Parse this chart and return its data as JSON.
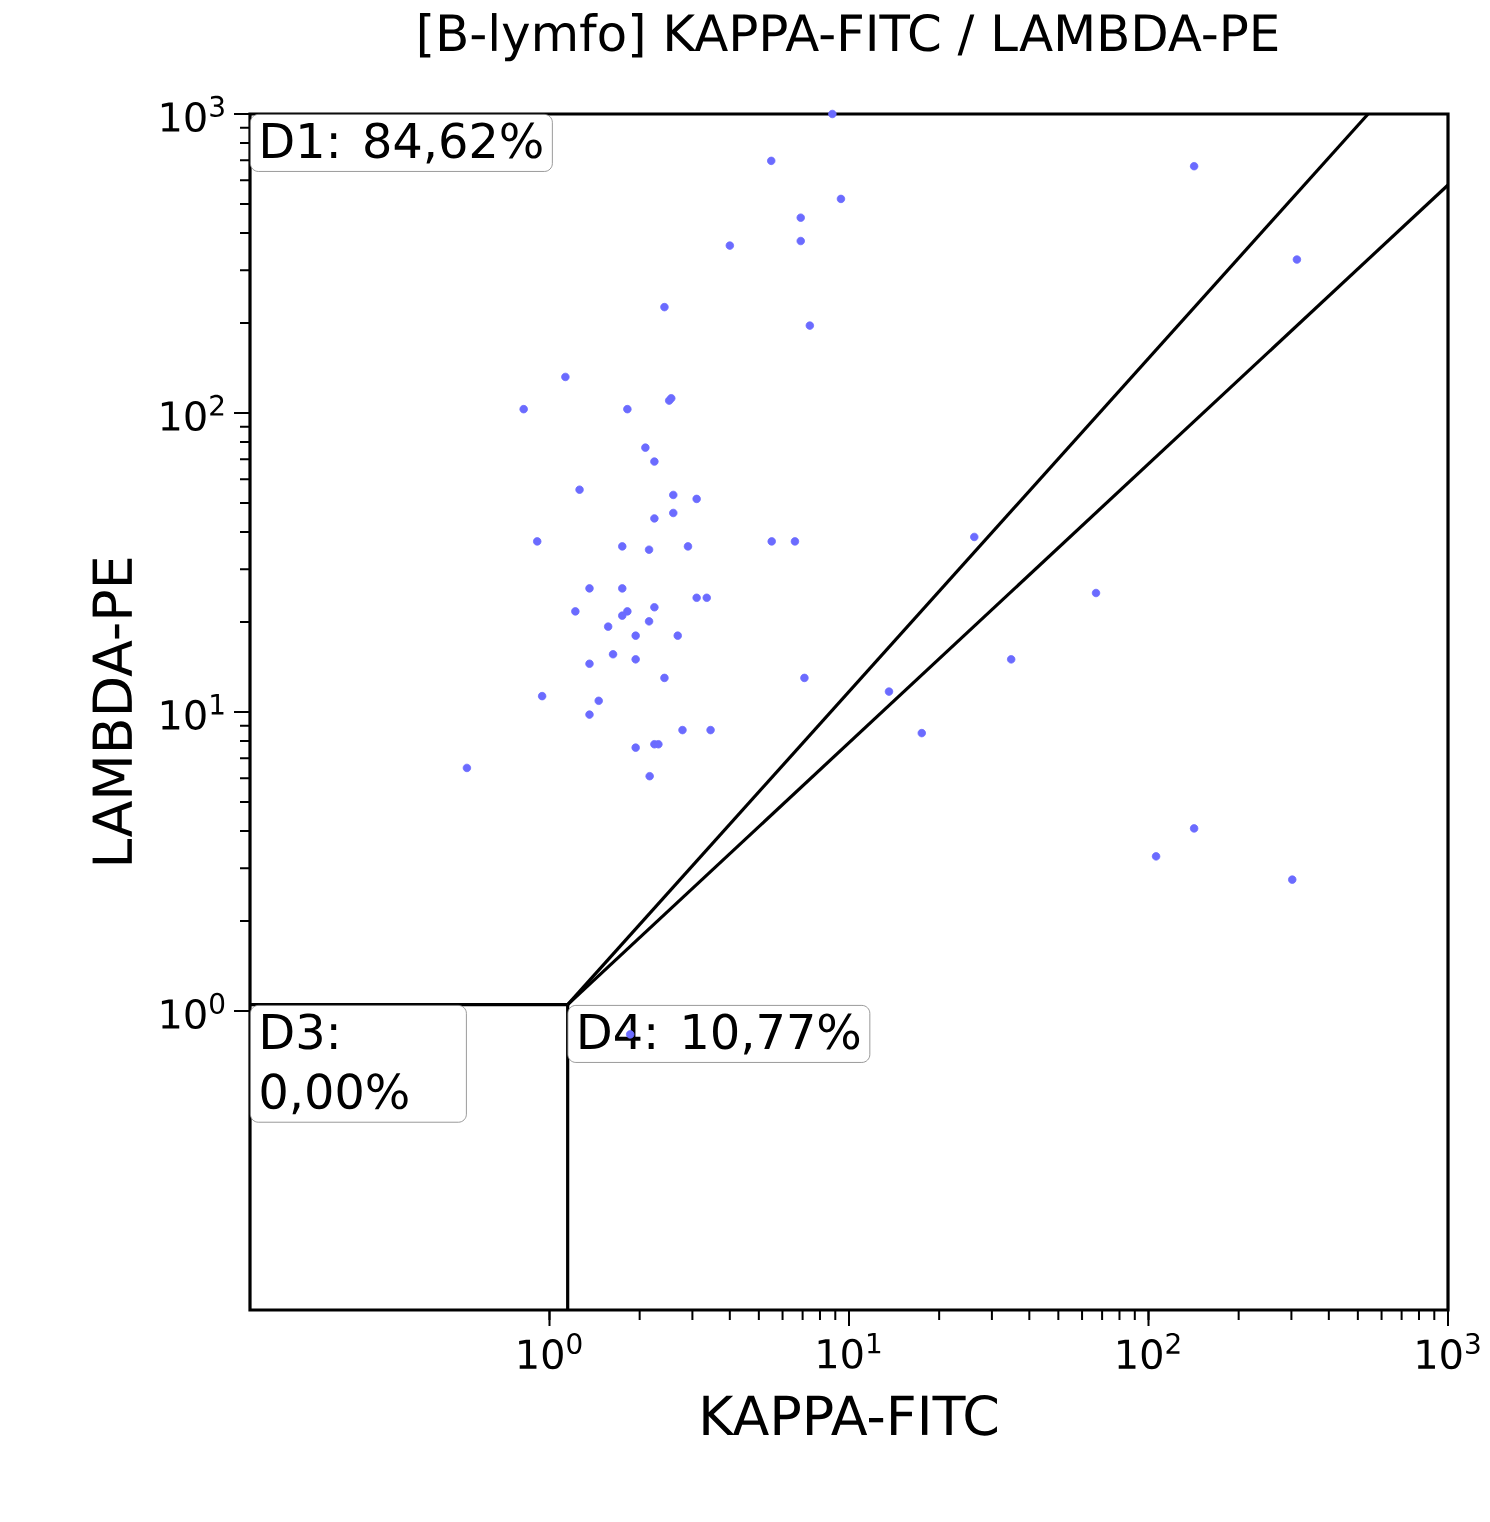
{
  "chart_data": {
    "type": "scatter",
    "title": "[B-lymfo] KAPPA-FITC / LAMBDA-PE",
    "xlabel": "KAPPA-FITC",
    "ylabel": "LAMBDA-PE",
    "log": "xy",
    "xlim": [
      0.1,
      1000
    ],
    "ylim": [
      0.1,
      1000
    ],
    "xticks": [
      {
        "value": 1,
        "label": "10$^{0}$"
      },
      {
        "value": 10,
        "label": "10$^{1}$"
      },
      {
        "value": 100,
        "label": "10$^{2}$"
      },
      {
        "value": 1000,
        "label": "10$^{3}$"
      }
    ],
    "yticks": [
      {
        "value": 1,
        "label": "10$^{0}$"
      },
      {
        "value": 10,
        "label": "10$^{1}$"
      },
      {
        "value": 100,
        "label": "10$^{2}$"
      },
      {
        "value": 1000,
        "label": "10$^{3}$"
      }
    ],
    "annotations": [
      "D1: 84,62%",
      "D3: 0,00%",
      "D4: 10,77%"
    ],
    "series": [
      {
        "color": "#6b6bff",
        "marker": "circle",
        "x": [
          8.8,
          5.5,
          9.4,
          6.9,
          6.9,
          4.0,
          2.42,
          7.4,
          1.13,
          0.82,
          1.82,
          2.51,
          2.55,
          2.09,
          2.24,
          1.26,
          2.59,
          3.1,
          2.24,
          2.59,
          0.91,
          1.75,
          2.15,
          2.9,
          5.52,
          6.6,
          1.36,
          1.75,
          3.1,
          3.35,
          1.22,
          1.82,
          1.75,
          2.24,
          2.15,
          1.57,
          1.94,
          2.68,
          1.63,
          1.36,
          1.94,
          2.42,
          7.1,
          0.945,
          1.46,
          1.36,
          13.6,
          17.5,
          2.78,
          3.45,
          1.94,
          2.24,
          2.31,
          2.16,
          0.53,
          142,
          313,
          26.2,
          66.8,
          34.8,
          142,
          106,
          302,
          1.86
        ],
        "values": [
          1000,
          697,
          520,
          450,
          376,
          363,
          226,
          196,
          132,
          103,
          103,
          110,
          112,
          76.6,
          68.8,
          55.4,
          53.2,
          51.6,
          44.4,
          46.3,
          37.2,
          35.8,
          34.9,
          35.8,
          37.2,
          37.2,
          25.9,
          25.9,
          24.1,
          24.1,
          21.7,
          21.7,
          21.0,
          22.4,
          20.1,
          19.3,
          18.0,
          18.0,
          15.6,
          14.5,
          15.0,
          13.0,
          13.0,
          11.3,
          10.9,
          9.8,
          11.7,
          8.5,
          8.7,
          8.7,
          7.6,
          7.8,
          7.8,
          6.1,
          6.5,
          669,
          326,
          38.5,
          25.0,
          15.0,
          4.08,
          3.29,
          2.75,
          0.835
        ]
      },
      {
        "type": "line",
        "marker": "none",
        "color": "#000000",
        "x": [
          0.1,
          1.15
        ],
        "values": [
          1.05,
          1.05
        ]
      },
      {
        "type": "line",
        "marker": "none",
        "color": "#000000",
        "x": [
          1.15,
          1.15
        ],
        "values": [
          0.1,
          1.05
        ]
      },
      {
        "type": "line",
        "marker": "none",
        "color": "#000000",
        "x": [
          1.15,
          541
        ],
        "values": [
          1.05,
          1000
        ]
      },
      {
        "type": "line",
        "marker": "none",
        "color": "#000000",
        "x": [
          1.15,
          1000
        ],
        "values": [
          1.05,
          579
        ]
      }
    ]
  }
}
